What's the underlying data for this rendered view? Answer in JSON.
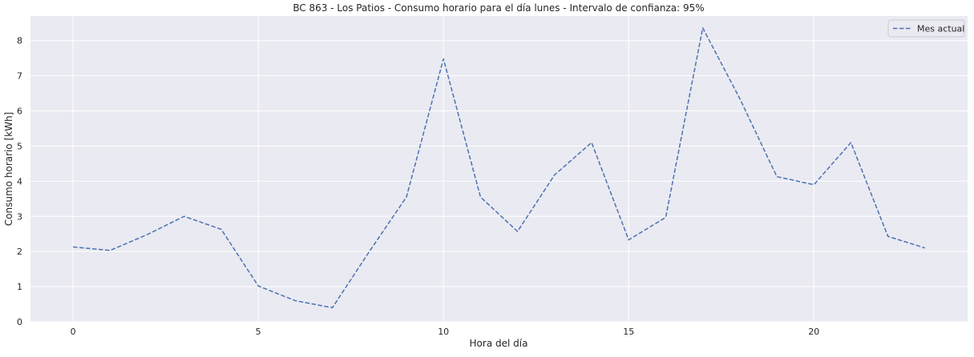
{
  "chart_data": {
    "type": "line",
    "title": "BC 863 - Los Patios - Consumo horario para el día lunes - Intervalo de confianza: 95%",
    "xlabel": "Hora del día",
    "ylabel": "Consumo horario [kWh]",
    "xlim": [
      -1.15,
      24.15
    ],
    "ylim": [
      0,
      8.7
    ],
    "xticks": [
      0,
      5,
      10,
      15,
      20
    ],
    "yticks": [
      0,
      1,
      2,
      3,
      4,
      5,
      6,
      7,
      8
    ],
    "grid": true,
    "legend_position": "top-right",
    "series": [
      {
        "name": "Mes actual",
        "color": "#4c72b0",
        "line_style": "dashed",
        "x": [
          0,
          1,
          2,
          3,
          4,
          5,
          6,
          7,
          8,
          9,
          10,
          11,
          12,
          13,
          14,
          15,
          16,
          17,
          18,
          19,
          20,
          21,
          22,
          23
        ],
        "values": [
          2.13,
          2.03,
          2.48,
          3.0,
          2.63,
          1.02,
          0.6,
          0.4,
          2.0,
          3.55,
          7.48,
          3.55,
          2.57,
          4.18,
          5.1,
          2.33,
          2.97,
          8.36,
          6.35,
          4.13,
          3.9,
          5.1,
          2.43,
          2.1
        ]
      }
    ]
  }
}
